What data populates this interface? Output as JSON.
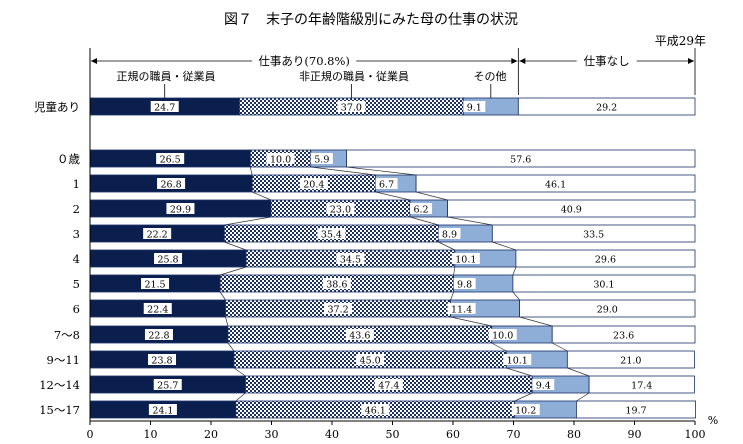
{
  "chart_data": {
    "type": "bar",
    "orientation": "horizontal",
    "stacked": true,
    "title": "図７　末子の年齢階級別にみた母の仕事の状況",
    "year_label": "平成29年",
    "x_unit": "%",
    "xlim": [
      0,
      100
    ],
    "x_ticks": [
      0,
      10,
      20,
      30,
      40,
      50,
      60,
      70,
      80,
      90,
      100
    ],
    "grid": false,
    "group_labels": {
      "employed_total": "仕事あり(70.8%)",
      "not_employed": "仕事なし"
    },
    "categories": [
      "児童あり",
      "０歳",
      "1",
      "2",
      "3",
      "4",
      "5",
      "6",
      "7～8",
      "9～11",
      "12～14",
      "15～17"
    ],
    "series": [
      {
        "name": "正規の職員・従業員",
        "color": "#0b1f4f",
        "values": [
          24.7,
          26.5,
          26.8,
          29.9,
          22.2,
          25.8,
          21.5,
          22.4,
          22.8,
          23.8,
          25.7,
          24.1
        ]
      },
      {
        "name": "非正規の職員・従業員",
        "color": "#9fb6d6",
        "values": [
          37.0,
          10.0,
          20.4,
          23.0,
          35.4,
          34.5,
          38.6,
          37.2,
          43.6,
          45.0,
          47.4,
          46.1
        ]
      },
      {
        "name": "その他",
        "color": "#8eaed8",
        "values": [
          9.1,
          5.9,
          6.7,
          6.2,
          8.9,
          10.1,
          9.8,
          11.4,
          10.0,
          10.1,
          9.4,
          10.2
        ]
      },
      {
        "name": "",
        "color": "#ffffff",
        "values": [
          29.2,
          57.6,
          46.1,
          40.9,
          33.5,
          29.6,
          30.1,
          29.0,
          23.6,
          21.0,
          17.4,
          19.7
        ]
      }
    ]
  }
}
